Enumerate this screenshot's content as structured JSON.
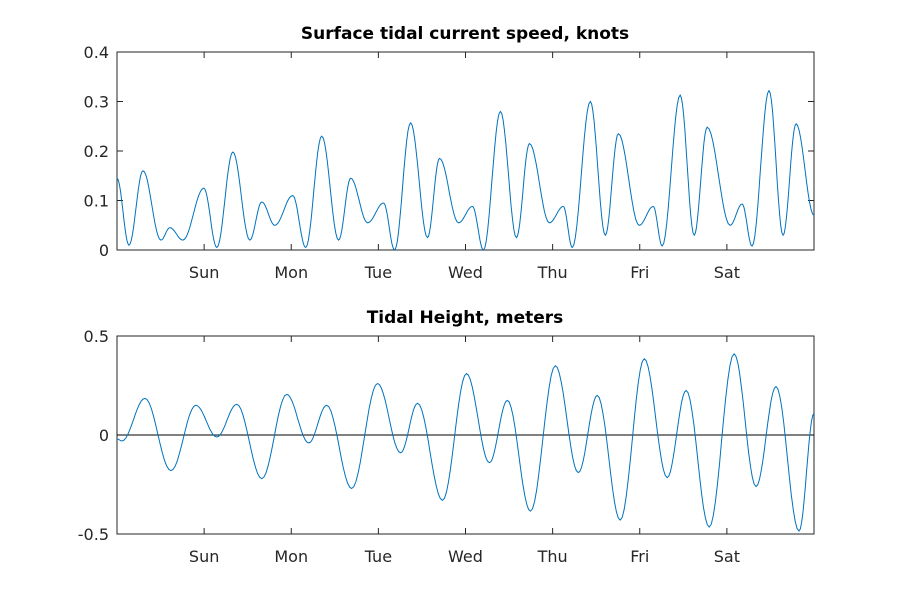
{
  "chart_data": [
    {
      "type": "line",
      "title": "Surface tidal current speed, knots",
      "xlabel": "",
      "ylabel": "",
      "xlim": [
        0,
        8
      ],
      "ylim": [
        0,
        0.4
      ],
      "x_tick_positions": [
        1,
        2,
        3,
        4,
        5,
        6,
        7
      ],
      "x_tick_labels": [
        "Sun",
        "Mon",
        "Tue",
        "Wed",
        "Thu",
        "Fri",
        "Sat"
      ],
      "y_ticks": [
        0,
        0.1,
        0.2,
        0.3,
        0.4
      ],
      "y_tick_labels": [
        "0",
        "0.1",
        "0.2",
        "0.3",
        "0.4"
      ],
      "zero_line": false,
      "color": "#0072bd",
      "series": [
        {
          "name": "speed",
          "x": [
            0,
            0.138,
            0.298,
            0.504,
            0.607,
            0.756,
            0.997,
            1.146,
            1.33,
            1.524,
            1.662,
            1.811,
            2.017,
            2.166,
            2.35,
            2.544,
            2.682,
            2.877,
            3.06,
            3.186,
            3.37,
            3.564,
            3.702,
            3.92,
            4.08,
            4.206,
            4.401,
            4.585,
            4.734,
            4.963,
            5.123,
            5.226,
            5.433,
            5.605,
            5.754,
            5.994,
            6.155,
            6.258,
            6.464,
            6.625,
            6.774,
            7.037,
            7.175,
            7.289,
            7.484,
            7.645,
            7.794,
            8
          ],
          "y": [
            0.145,
            0.01,
            0.16,
            0.02,
            0.045,
            0.02,
            0.125,
            0.005,
            0.198,
            0.02,
            0.097,
            0.05,
            0.11,
            0.005,
            0.23,
            0.02,
            0.145,
            0.055,
            0.095,
            0.0,
            0.257,
            0.025,
            0.185,
            0.055,
            0.088,
            0.0,
            0.28,
            0.025,
            0.215,
            0.055,
            0.088,
            0.005,
            0.3,
            0.03,
            0.235,
            0.05,
            0.088,
            0.008,
            0.313,
            0.03,
            0.248,
            0.05,
            0.093,
            0.008,
            0.322,
            0.03,
            0.255,
            0.07
          ]
        }
      ]
    },
    {
      "type": "line",
      "title": "Tidal Height, meters",
      "xlabel": "",
      "ylabel": "",
      "xlim": [
        0,
        8
      ],
      "ylim": [
        -0.5,
        0.5
      ],
      "x_tick_positions": [
        1,
        2,
        3,
        4,
        5,
        6,
        7
      ],
      "x_tick_labels": [
        "Sun",
        "Mon",
        "Tue",
        "Wed",
        "Thu",
        "Fri",
        "Sat"
      ],
      "y_ticks": [
        -0.5,
        0,
        0.5
      ],
      "y_tick_labels": [
        "-0.5",
        "0",
        "0.5"
      ],
      "zero_line": true,
      "color": "#0072bd",
      "series": [
        {
          "name": "height",
          "x": [
            0,
            0.057,
            0.321,
            0.619,
            0.905,
            1.146,
            1.375,
            1.662,
            1.948,
            2.201,
            2.407,
            2.693,
            2.991,
            3.255,
            3.45,
            3.736,
            4.011,
            4.275,
            4.481,
            4.745,
            5.032,
            5.295,
            5.513,
            5.776,
            6.052,
            6.315,
            6.533,
            6.797,
            7.083,
            7.335,
            7.564,
            7.828,
            8
          ],
          "y": [
            -0.02,
            -0.03,
            0.185,
            -0.18,
            0.15,
            -0.01,
            0.155,
            -0.22,
            0.205,
            -0.04,
            0.15,
            -0.27,
            0.26,
            -0.09,
            0.16,
            -0.33,
            0.31,
            -0.14,
            0.175,
            -0.385,
            0.35,
            -0.19,
            0.2,
            -0.43,
            0.385,
            -0.215,
            0.225,
            -0.465,
            0.41,
            -0.26,
            0.245,
            -0.485,
            0.11
          ]
        }
      ]
    }
  ]
}
